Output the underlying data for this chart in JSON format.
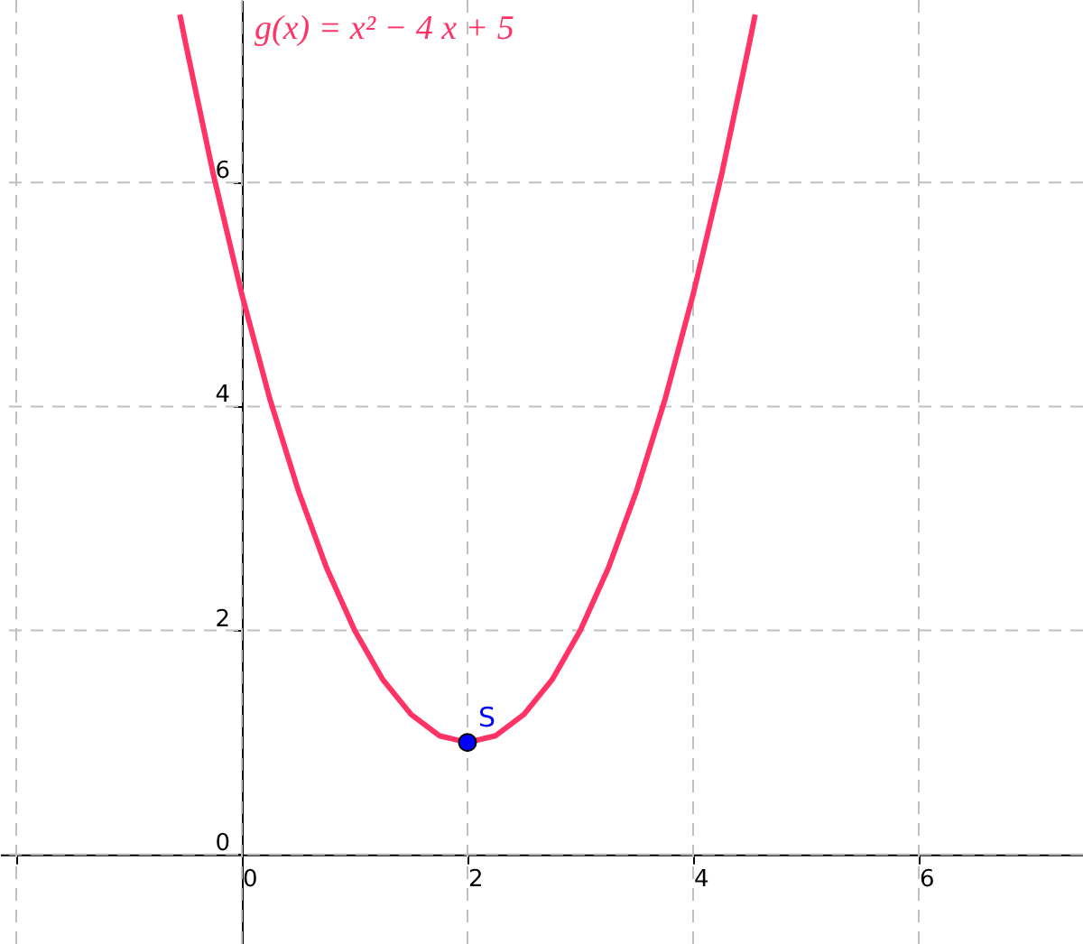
{
  "chart_data": {
    "type": "line",
    "xlim": [
      -2.144,
      7.456
    ],
    "ylim": [
      -0.8,
      7.63
    ],
    "xticks": [
      {
        "value": -2,
        "label": null
      },
      0,
      2,
      4,
      6
    ],
    "yticks": [
      0,
      2,
      4,
      6
    ],
    "grid": true,
    "line_style": "solid",
    "series": [
      {
        "name": "g(x) = x² − 4 x + 5",
        "color": "#ff3366",
        "marker": "none",
        "x": [
          -0.55,
          -0.5,
          -0.25,
          0,
          0.25,
          0.5,
          0.75,
          1,
          1.25,
          1.5,
          1.75,
          2,
          2.25,
          2.5,
          2.75,
          3,
          3.25,
          3.5,
          3.75,
          4,
          4.25,
          4.5,
          4.55
        ],
        "values": [
          7.5,
          7.25,
          6.06,
          5,
          4.06,
          3.25,
          2.56,
          2,
          1.56,
          1.25,
          1.06,
          1,
          1.06,
          1.25,
          1.56,
          2,
          2.56,
          3.25,
          4.06,
          5,
          6.06,
          7.25,
          7.5
        ]
      },
      {
        "name": "S",
        "color": "#0000ff",
        "type": "scatter",
        "marker": "circle",
        "x": [
          2
        ],
        "values": [
          1
        ]
      }
    ]
  }
}
